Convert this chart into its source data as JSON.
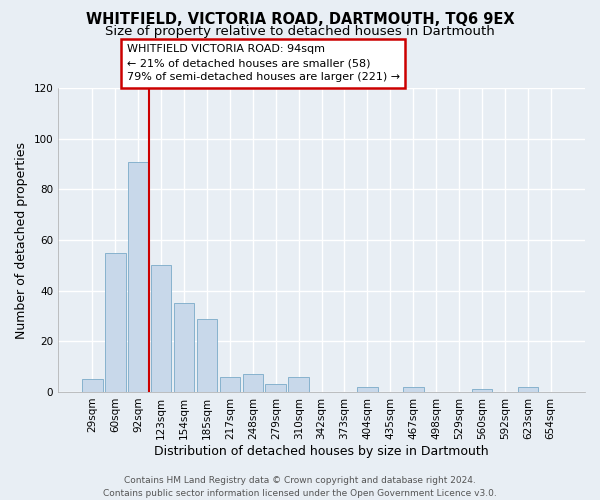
{
  "title": "WHITFIELD, VICTORIA ROAD, DARTMOUTH, TQ6 9EX",
  "subtitle": "Size of property relative to detached houses in Dartmouth",
  "xlabel": "Distribution of detached houses by size in Dartmouth",
  "ylabel": "Number of detached properties",
  "bar_labels": [
    "29sqm",
    "60sqm",
    "92sqm",
    "123sqm",
    "154sqm",
    "185sqm",
    "217sqm",
    "248sqm",
    "279sqm",
    "310sqm",
    "342sqm",
    "373sqm",
    "404sqm",
    "435sqm",
    "467sqm",
    "498sqm",
    "529sqm",
    "560sqm",
    "592sqm",
    "623sqm",
    "654sqm"
  ],
  "bar_values": [
    5,
    55,
    91,
    50,
    35,
    29,
    6,
    7,
    3,
    6,
    0,
    0,
    2,
    0,
    2,
    0,
    0,
    1,
    0,
    2,
    0
  ],
  "bar_color": "#c8d8ea",
  "bar_edge_color": "#7aaac8",
  "vline_x_index": 2,
  "vline_color": "#cc0000",
  "ylim": [
    0,
    120
  ],
  "yticks": [
    0,
    20,
    40,
    60,
    80,
    100,
    120
  ],
  "annotation_text": "WHITFIELD VICTORIA ROAD: 94sqm\n← 21% of detached houses are smaller (58)\n79% of semi-detached houses are larger (221) →",
  "annotation_box_facecolor": "#ffffff",
  "annotation_box_edgecolor": "#cc0000",
  "footer_line1": "Contains HM Land Registry data © Crown copyright and database right 2024.",
  "footer_line2": "Contains public sector information licensed under the Open Government Licence v3.0.",
  "background_color": "#e8eef4",
  "grid_color": "#ffffff",
  "title_fontsize": 10.5,
  "subtitle_fontsize": 9.5,
  "axis_label_fontsize": 9,
  "tick_fontsize": 7.5,
  "annotation_fontsize": 8,
  "footer_fontsize": 6.5
}
